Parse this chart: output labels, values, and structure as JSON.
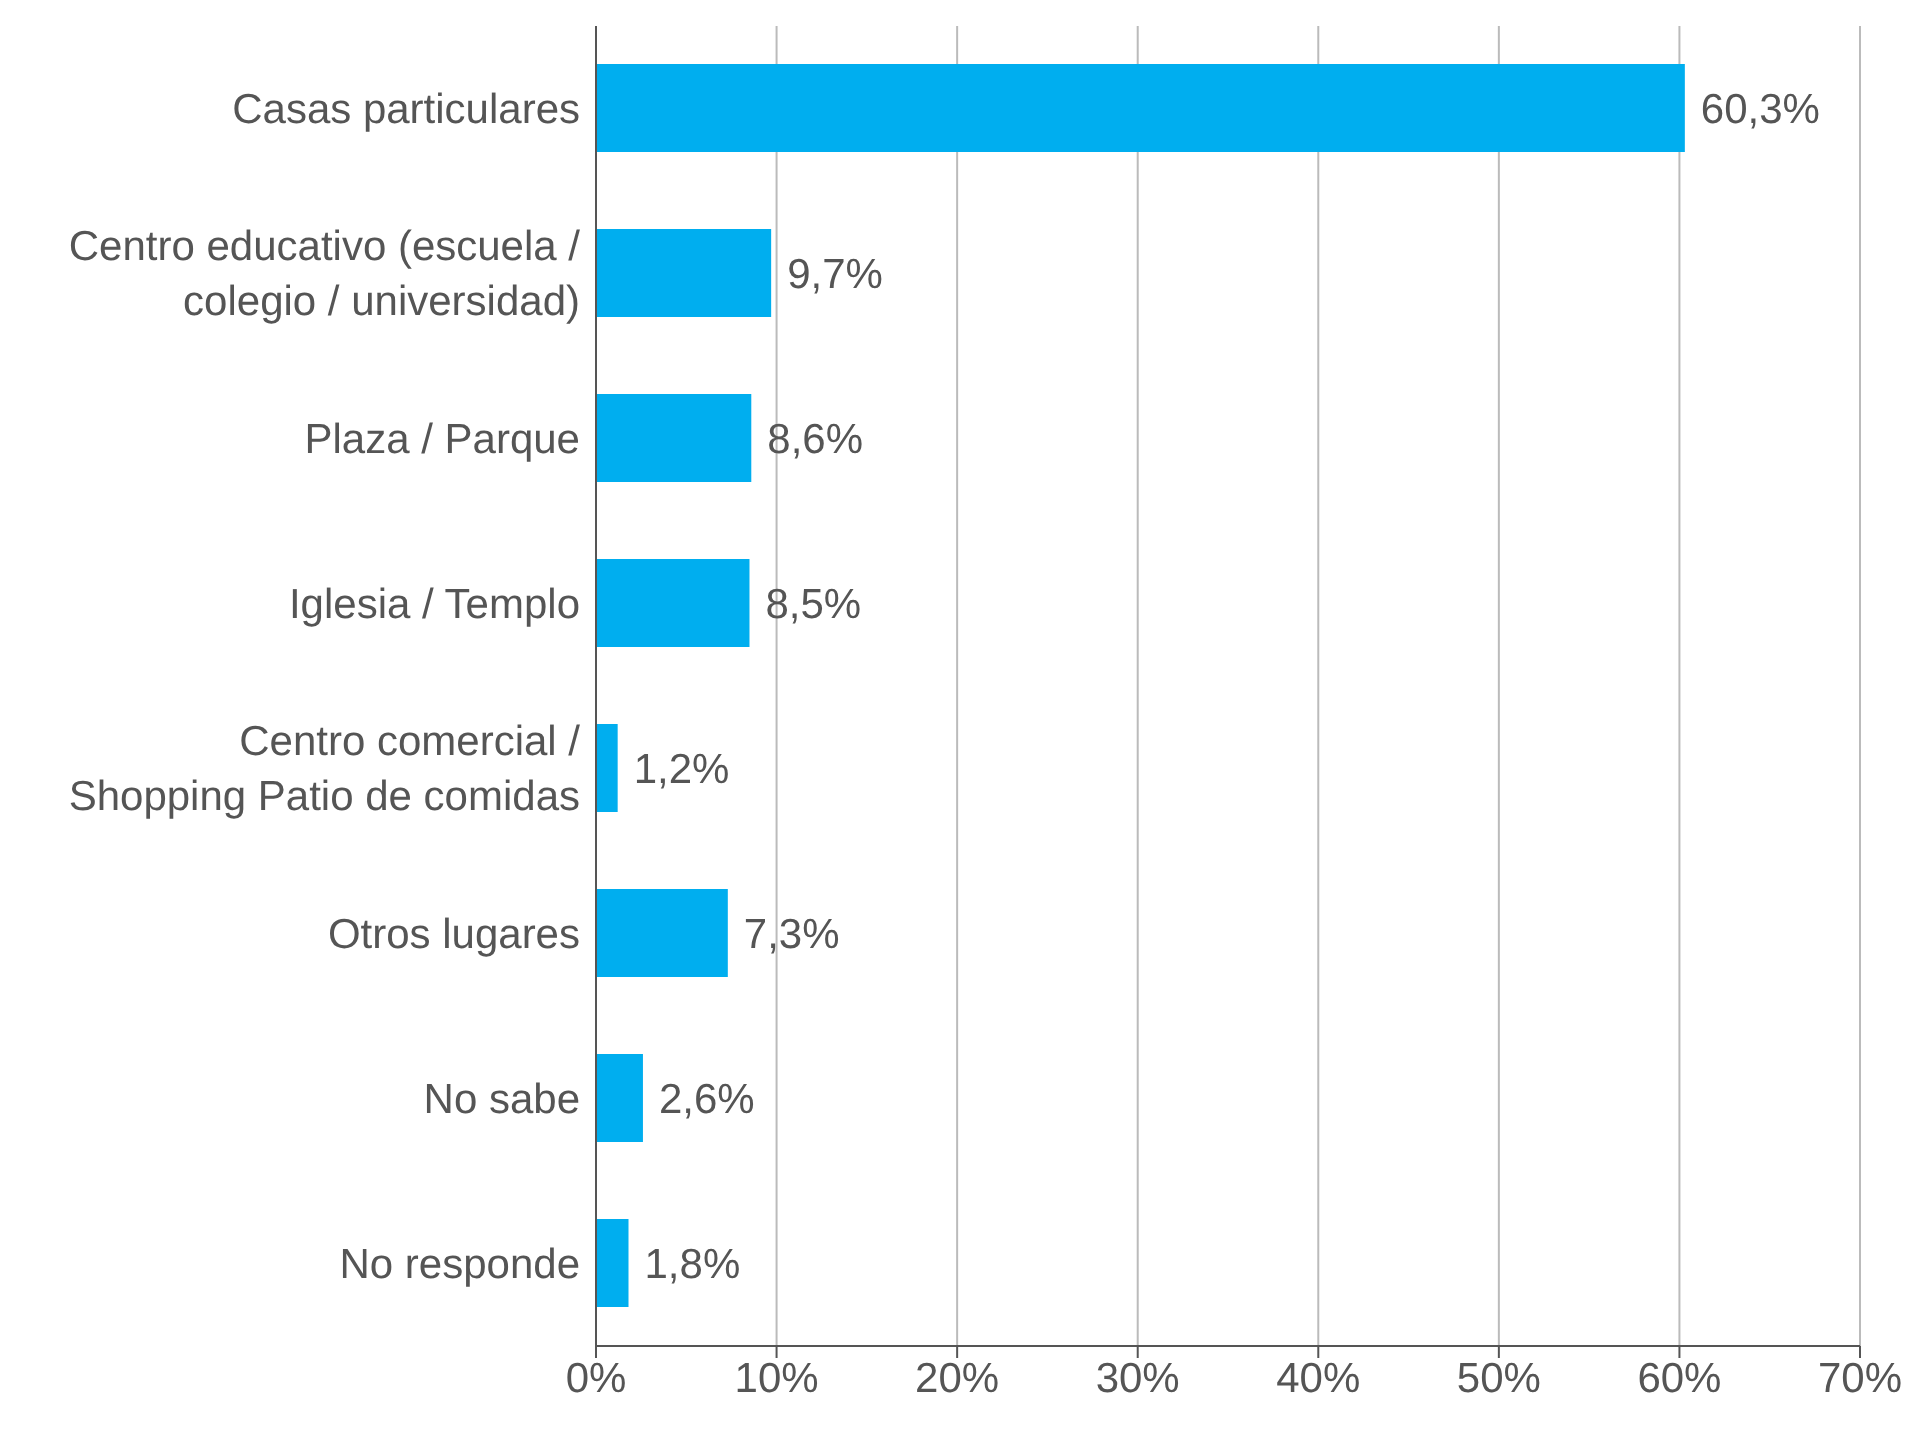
{
  "chart_data": {
    "type": "bar",
    "orientation": "horizontal",
    "categories": [
      "Casas particulares",
      "Centro educativo (escuela / colegio / universidad)",
      "Plaza / Parque",
      "Iglesia / Templo",
      "Centro comercial / Shopping Patio de comidas",
      "Otros lugares",
      "No sabe",
      "No responde"
    ],
    "values": [
      60.3,
      9.7,
      8.6,
      8.5,
      1.2,
      7.3,
      2.6,
      1.8
    ],
    "value_labels": [
      "60,3%",
      "9,7%",
      "8,6%",
      "8,5%",
      "1,2%",
      "7,3%",
      "2,6%",
      "1,8%"
    ],
    "color": "#00aeef",
    "xlim": [
      0,
      70
    ],
    "xticks": [
      {
        "value": 0,
        "label": "0%"
      },
      {
        "value": 10,
        "label": "10%"
      },
      {
        "value": 20,
        "label": "20%"
      },
      {
        "value": 30,
        "label": "30%"
      },
      {
        "value": 40,
        "label": "40%"
      },
      {
        "value": 50,
        "label": "50%"
      },
      {
        "value": 60,
        "label": "60%"
      },
      {
        "value": 70,
        "label": "70%"
      }
    ],
    "grid": "x"
  }
}
